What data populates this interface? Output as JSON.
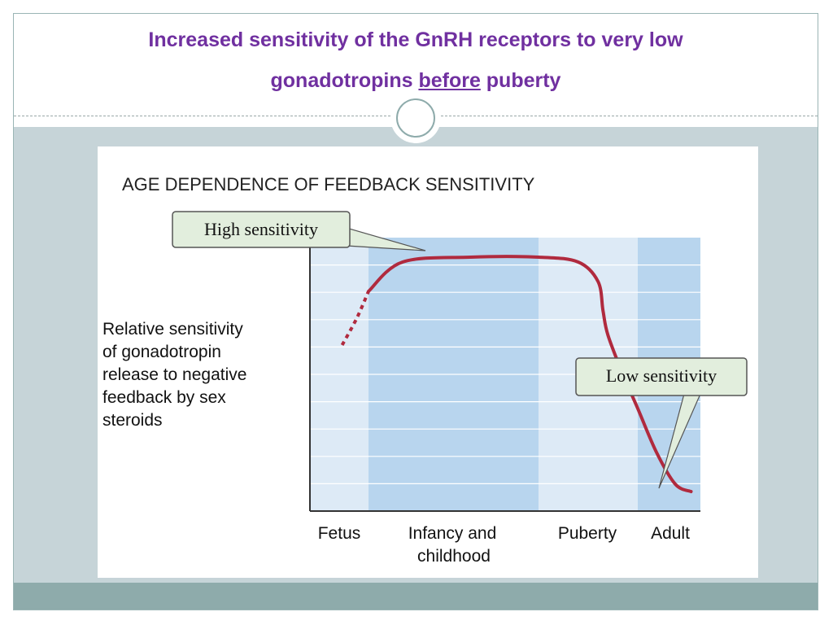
{
  "slide": {
    "title_line1": "Increased sensitivity of the GnRH receptors to very low",
    "title_line2_prefix": "gonadotropins ",
    "title_line2_underlined": "before",
    "title_line2_suffix": " puberty",
    "title_color": "#7030a0"
  },
  "figure": {
    "title": "AGE DEPENDENCE OF FEEDBACK SENSITIVITY",
    "y_label_lines": [
      "Relative sensitivity",
      "of gonadotropin",
      "release to negative",
      "feedback by sex",
      "steroids"
    ],
    "callouts": {
      "high": "High sensitivity",
      "low": "Low sensitivity"
    },
    "x_labels": [
      [
        "Fetus"
      ],
      [
        "Infancy and",
        "childhood"
      ],
      [
        "Puberty"
      ],
      [
        "Adult"
      ]
    ]
  },
  "chart_data": {
    "type": "line",
    "title": "AGE DEPENDENCE OF FEEDBACK SENSITIVITY",
    "xlabel": "",
    "ylabel": "Relative sensitivity of gonadotropin release to negative feedback by sex steroids",
    "categories": [
      "Fetus",
      "Infancy and childhood",
      "Puberty",
      "Adult"
    ],
    "x_range": [
      0,
      4
    ],
    "ylim": [
      0,
      1
    ],
    "series": [
      {
        "name": "Feedback sensitivity (dashed, fetus)",
        "style": "dotted",
        "x": [
          0.55,
          0.8,
          1.0
        ],
        "y": [
          0.64,
          0.75,
          0.86
        ]
      },
      {
        "name": "Feedback sensitivity",
        "style": "solid",
        "x": [
          1.0,
          1.2,
          1.6,
          2.0,
          2.4,
          2.6,
          2.65,
          2.7,
          2.85,
          3.0,
          3.3,
          3.6,
          3.85
        ],
        "y": [
          0.86,
          0.98,
          1.0,
          1.0,
          0.98,
          0.9,
          0.78,
          0.68,
          0.52,
          0.38,
          0.2,
          0.07,
          0.04
        ]
      }
    ],
    "colors": {
      "curve": "#b02a3e",
      "band_light": "#ddeaf6",
      "band_dark": "#b8d5ee",
      "callout_fill": "#e2eedd"
    }
  }
}
